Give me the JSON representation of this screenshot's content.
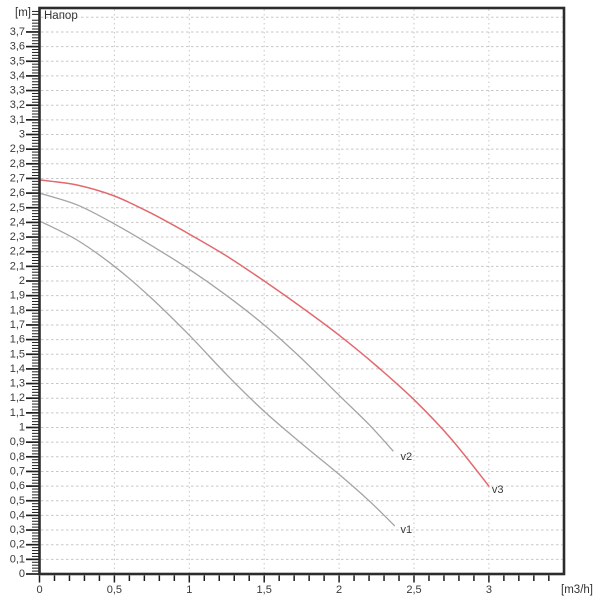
{
  "window": {
    "background": "#ffffff"
  },
  "chart_data": {
    "type": "line",
    "title": "Напор",
    "y_axis_unit": "[m]",
    "x_axis_unit": "[m3/h]",
    "x_axis": {
      "min": 0,
      "max": 3.5,
      "minor_tick_step": 0.1,
      "labeled_ticks": [
        0,
        0.5,
        1,
        1.5,
        2,
        2.5,
        3
      ],
      "tick_labels": [
        "0",
        "0,5",
        "1",
        "1,5",
        "2",
        "2,5",
        "3"
      ]
    },
    "y_axis": {
      "min": 0,
      "max": 3.85,
      "label_step": 0.1,
      "minor_tick_step": 0.02,
      "tick_labels": [
        "0",
        "0,1",
        "0,2",
        "0,3",
        "0,4",
        "0,5",
        "0,6",
        "0,7",
        "0,8",
        "0,9",
        "1",
        "1,1",
        "1,2",
        "1,3",
        "1,4",
        "1,5",
        "1,6",
        "1,7",
        "1,8",
        "1,9",
        "2",
        "2,1",
        "2,2",
        "2,3",
        "2,4",
        "2,5",
        "2,6",
        "2,7",
        "2,8",
        "2,9",
        "3",
        "3,1",
        "3,2",
        "3,3",
        "3,4",
        "3,5",
        "3,6",
        "3,7"
      ]
    },
    "grid": {
      "horizontal_step": 0.1,
      "horizontal_from": 0.1,
      "horizontal_to": 3.8,
      "vertical_lines": [
        0.5,
        1,
        1.5,
        2,
        2.5,
        3
      ],
      "color": "#c7c7c7"
    },
    "colors": {
      "plot_border": "#2c2c2c",
      "tick": "#1e1e1e",
      "tick_label": "#3a3a3a",
      "gray_curve": "#a4a4a4",
      "red_curve": "#e2696d",
      "gray_label": "#8d8d8d",
      "red_label": "#e57f83"
    },
    "series": [
      {
        "name": "v1",
        "label": "v1",
        "color": "#a4a4a4",
        "label_color": "#8d8d8d",
        "label_at": [
          2.41,
          0.3
        ],
        "points": [
          [
            0,
            2.41
          ],
          [
            0.25,
            2.28
          ],
          [
            0.5,
            2.1
          ],
          [
            0.75,
            1.88
          ],
          [
            1.0,
            1.63
          ],
          [
            1.25,
            1.36
          ],
          [
            1.5,
            1.11
          ],
          [
            1.75,
            0.89
          ],
          [
            2.0,
            0.68
          ],
          [
            2.2,
            0.5
          ],
          [
            2.37,
            0.33
          ]
        ]
      },
      {
        "name": "v2",
        "label": "v2",
        "color": "#a4a4a4",
        "label_color": "#8d8d8d",
        "label_at": [
          2.41,
          0.8
        ],
        "points": [
          [
            0,
            2.6
          ],
          [
            0.25,
            2.52
          ],
          [
            0.5,
            2.39
          ],
          [
            0.75,
            2.24
          ],
          [
            1.0,
            2.08
          ],
          [
            1.25,
            1.9
          ],
          [
            1.5,
            1.7
          ],
          [
            1.75,
            1.47
          ],
          [
            2.0,
            1.22
          ],
          [
            2.2,
            1.02
          ],
          [
            2.36,
            0.84
          ]
        ]
      },
      {
        "name": "v3",
        "label": "v3",
        "color": "#e2696d",
        "label_color": "#e57f83",
        "label_at": [
          3.02,
          0.575
        ],
        "points": [
          [
            0,
            2.69
          ],
          [
            0.25,
            2.655
          ],
          [
            0.5,
            2.58
          ],
          [
            0.75,
            2.46
          ],
          [
            1.0,
            2.32
          ],
          [
            1.25,
            2.17
          ],
          [
            1.5,
            2.0
          ],
          [
            1.75,
            1.82
          ],
          [
            2.0,
            1.63
          ],
          [
            2.25,
            1.42
          ],
          [
            2.5,
            1.19
          ],
          [
            2.75,
            0.92
          ],
          [
            3.0,
            0.6
          ]
        ]
      }
    ]
  }
}
